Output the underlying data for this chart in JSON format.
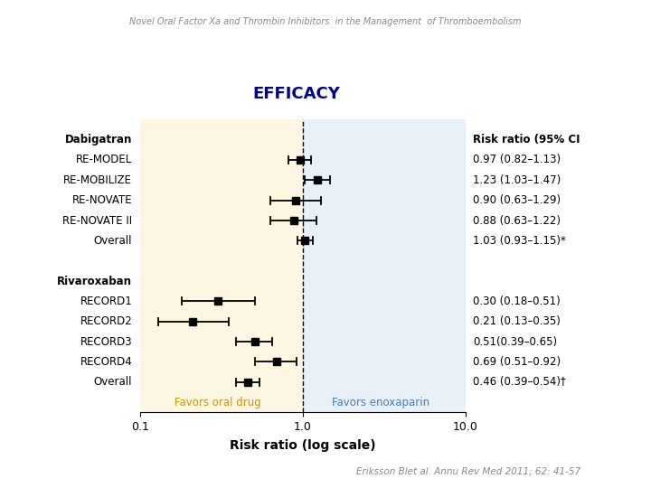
{
  "title": "EFFICACY",
  "super_title": "Novel Oral Factor Xa and Thrombin Inhibitors  in the Management  of Thromboembolism",
  "footer": "Eriksson Blet al. Annu Rev Med 2011; 62: 41-57",
  "xlabel": "Risk ratio (log scale)",
  "header_col": "Risk ratio (95% CI",
  "left_label": "Favors oral drug",
  "right_label": "Favors enoxaparin",
  "bg_left_color": "#fdf6e3",
  "bg_right_color": "#e8f0f8",
  "studies": [
    {
      "label": "Dabigatran",
      "y": 12,
      "rr": null,
      "lo": null,
      "hi": null,
      "ci_text": "",
      "bold": true
    },
    {
      "label": "RE-MODEL",
      "y": 11,
      "rr": 0.97,
      "lo": 0.82,
      "hi": 1.13,
      "ci_text": "0.97 (0.82–1.13)"
    },
    {
      "label": "RE-MOBILIZE",
      "y": 10,
      "rr": 1.23,
      "lo": 1.03,
      "hi": 1.47,
      "ci_text": "1.23 (1.03–1.47)"
    },
    {
      "label": "RE-NOVATE",
      "y": 9,
      "rr": 0.9,
      "lo": 0.63,
      "hi": 1.29,
      "ci_text": "0.90 (0.63–1.29)"
    },
    {
      "label": "RE-NOVATE II",
      "y": 8,
      "rr": 0.88,
      "lo": 0.63,
      "hi": 1.22,
      "ci_text": "0.88 (0.63–1.22)"
    },
    {
      "label": "Overall",
      "y": 7,
      "rr": 1.03,
      "lo": 0.93,
      "hi": 1.15,
      "ci_text": "1.03 (0.93–1.15)*",
      "overall": true
    },
    {
      "label": "",
      "y": 6,
      "rr": null,
      "lo": null,
      "hi": null,
      "ci_text": ""
    },
    {
      "label": "Rivaroxaban",
      "y": 5,
      "rr": null,
      "lo": null,
      "hi": null,
      "ci_text": "",
      "bold": true
    },
    {
      "label": "RECORD1",
      "y": 4,
      "rr": 0.3,
      "lo": 0.18,
      "hi": 0.51,
      "ci_text": "0.30 (0.18–0.51)"
    },
    {
      "label": "RECORD2",
      "y": 3,
      "rr": 0.21,
      "lo": 0.13,
      "hi": 0.35,
      "ci_text": "0.21 (0.13–0.35)"
    },
    {
      "label": "RECORD3",
      "y": 2,
      "rr": 0.51,
      "lo": 0.39,
      "hi": 0.65,
      "ci_text": "0.51(0.39–0.65)"
    },
    {
      "label": "RECORD4",
      "y": 1,
      "rr": 0.69,
      "lo": 0.51,
      "hi": 0.92,
      "ci_text": "0.69 (0.51–0.92)"
    },
    {
      "label": "Overall",
      "y": 0,
      "rr": 0.46,
      "lo": 0.39,
      "hi": 0.54,
      "ci_text": "0.46 (0.39–0.54)†",
      "overall": true
    }
  ]
}
